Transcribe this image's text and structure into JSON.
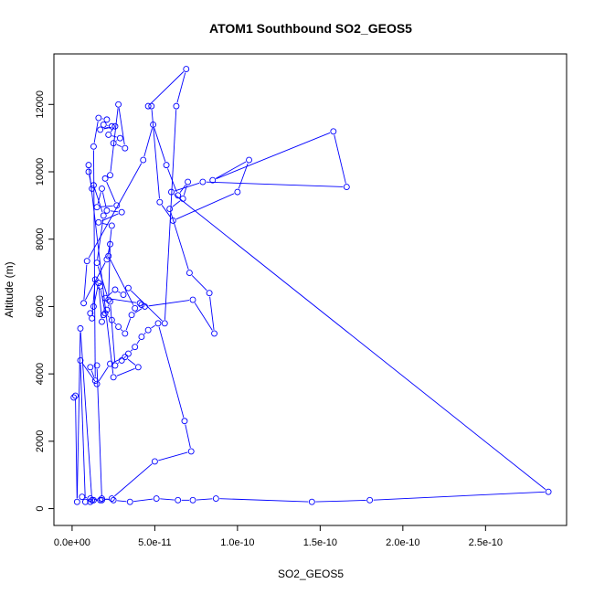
{
  "chart_data": {
    "type": "line",
    "title": "ATOM1 Southbound SO2_GEOS5",
    "xlabel": "SO2_GEOS5",
    "ylabel": "Altitude (m)",
    "xlim": [
      -1.1e-11,
      2.99e-10
    ],
    "ylim": [
      -500,
      13500
    ],
    "x_ticks": [
      0,
      5e-11,
      1e-10,
      1.5e-10,
      2e-10,
      2.5e-10
    ],
    "x_tick_labels": [
      "0.0e+00",
      "5.0e-11",
      "1.0e-10",
      "1.5e-10",
      "2.0e-10",
      "2.5e-10"
    ],
    "y_ticks": [
      0,
      2000,
      4000,
      6000,
      8000,
      10000,
      12000
    ],
    "y_tick_labels": [
      "0",
      "2000",
      "4000",
      "6000",
      "8000",
      "10000",
      "12000"
    ],
    "grid": false,
    "legend": "none",
    "color": "#0000ff",
    "series": [
      {
        "x": [
          1e-12,
          2e-12,
          3e-12,
          5e-12,
          1.2e-11,
          1.8e-11,
          1.5e-11,
          1.1e-11,
          1.4e-11,
          1.3e-11,
          1.6e-11,
          2.1e-11,
          1.9e-11,
          2.4e-11,
          1.7e-11,
          2.6e-11,
          2.2e-11,
          2.9e-11,
          2.5e-11,
          3.2e-11,
          2.8e-11,
          2.3e-11,
          2e-11,
          2.7e-11,
          1.5e-11,
          1.8e-11,
          2.1e-11,
          3e-11,
          1.6e-11,
          2.4e-11,
          2.2e-11,
          3.8e-11,
          4.2e-11,
          4.1e-11,
          2e-11,
          2.6e-11,
          3.1e-11,
          3.4e-11,
          5.6e-11,
          6.3e-11,
          6.9e-11,
          4.6e-11,
          4.8e-11,
          5.3e-11,
          6.1e-11,
          1e-10,
          1.07e-10,
          8.5e-11,
          1.58e-10,
          1.66e-10,
          7.9e-11,
          6e-11,
          2.88e-10,
          1.8e-10,
          1.45e-10,
          8.7e-11,
          7.3e-11,
          6.4e-11,
          5.1e-11,
          3.5e-11,
          2.5e-11,
          1.8e-11,
          1.3e-11,
          1.1e-11,
          8e-12,
          5e-12,
          1.5e-11,
          2.3e-11,
          3.2e-11,
          4e-11,
          2.5e-11,
          1e-11,
          1e-11,
          1.2e-11,
          1.3e-11,
          1.9e-11,
          1.5e-11,
          2.2e-11,
          2.3e-11,
          2.1e-11,
          7e-12,
          9e-12,
          4.3e-11,
          4.9e-11,
          5.7e-11,
          6.4e-11,
          7e-11,
          6.7e-11,
          5.9e-11,
          7.1e-11,
          8.3e-11,
          8.6e-11,
          7.3e-11,
          4.4e-11,
          3.6e-11,
          3.2e-11,
          2.8e-11,
          2.4e-11,
          2e-11,
          1.7e-11,
          1.4e-11,
          1.2e-11,
          1.1e-11,
          1.3e-11,
          1.6e-11,
          1.8e-11,
          1.9e-11,
          2.1e-11,
          2.3e-11,
          2.6e-11,
          3e-11,
          3.4e-11,
          3.8e-11,
          4.2e-11,
          4.6e-11,
          5.2e-11,
          6.8e-11,
          7.2e-11,
          5e-11,
          2.4e-11,
          1.7e-11,
          1.1e-11,
          6e-12
        ],
        "y": [
          3300,
          3350,
          200,
          5350,
          250,
          250,
          4250,
          4200,
          3800,
          10750,
          11600,
          11550,
          11400,
          11350,
          11250,
          11350,
          11100,
          11000,
          10850,
          10700,
          12000,
          9900,
          9800,
          9000,
          8950,
          9500,
          8850,
          8800,
          8500,
          8400,
          7500,
          5950,
          6050,
          6100,
          6250,
          6500,
          6350,
          6550,
          5500,
          11950,
          13050,
          11950,
          11950,
          9100,
          8550,
          9400,
          10350,
          9750,
          11200,
          9550,
          9700,
          9400,
          500,
          250,
          200,
          300,
          250,
          250,
          300,
          200,
          250,
          300,
          250,
          200,
          200,
          4400,
          3700,
          4300,
          4500,
          4200,
          3900,
          10200,
          10000,
          9500,
          9600,
          8700,
          7300,
          6200,
          7850,
          7400,
          6100,
          7350,
          10350,
          11400,
          10200,
          9300,
          9700,
          9200,
          8900,
          7000,
          6400,
          5200,
          6200,
          6000,
          5750,
          5200,
          5400,
          5600,
          5800,
          6600,
          6800,
          5650,
          5800,
          6000,
          6700,
          5550,
          5750,
          5900,
          6150,
          4250,
          4400,
          4600,
          4800,
          5100,
          5300,
          5500,
          2600,
          1700,
          1400,
          300,
          250,
          300,
          350
        ]
      }
    ]
  }
}
